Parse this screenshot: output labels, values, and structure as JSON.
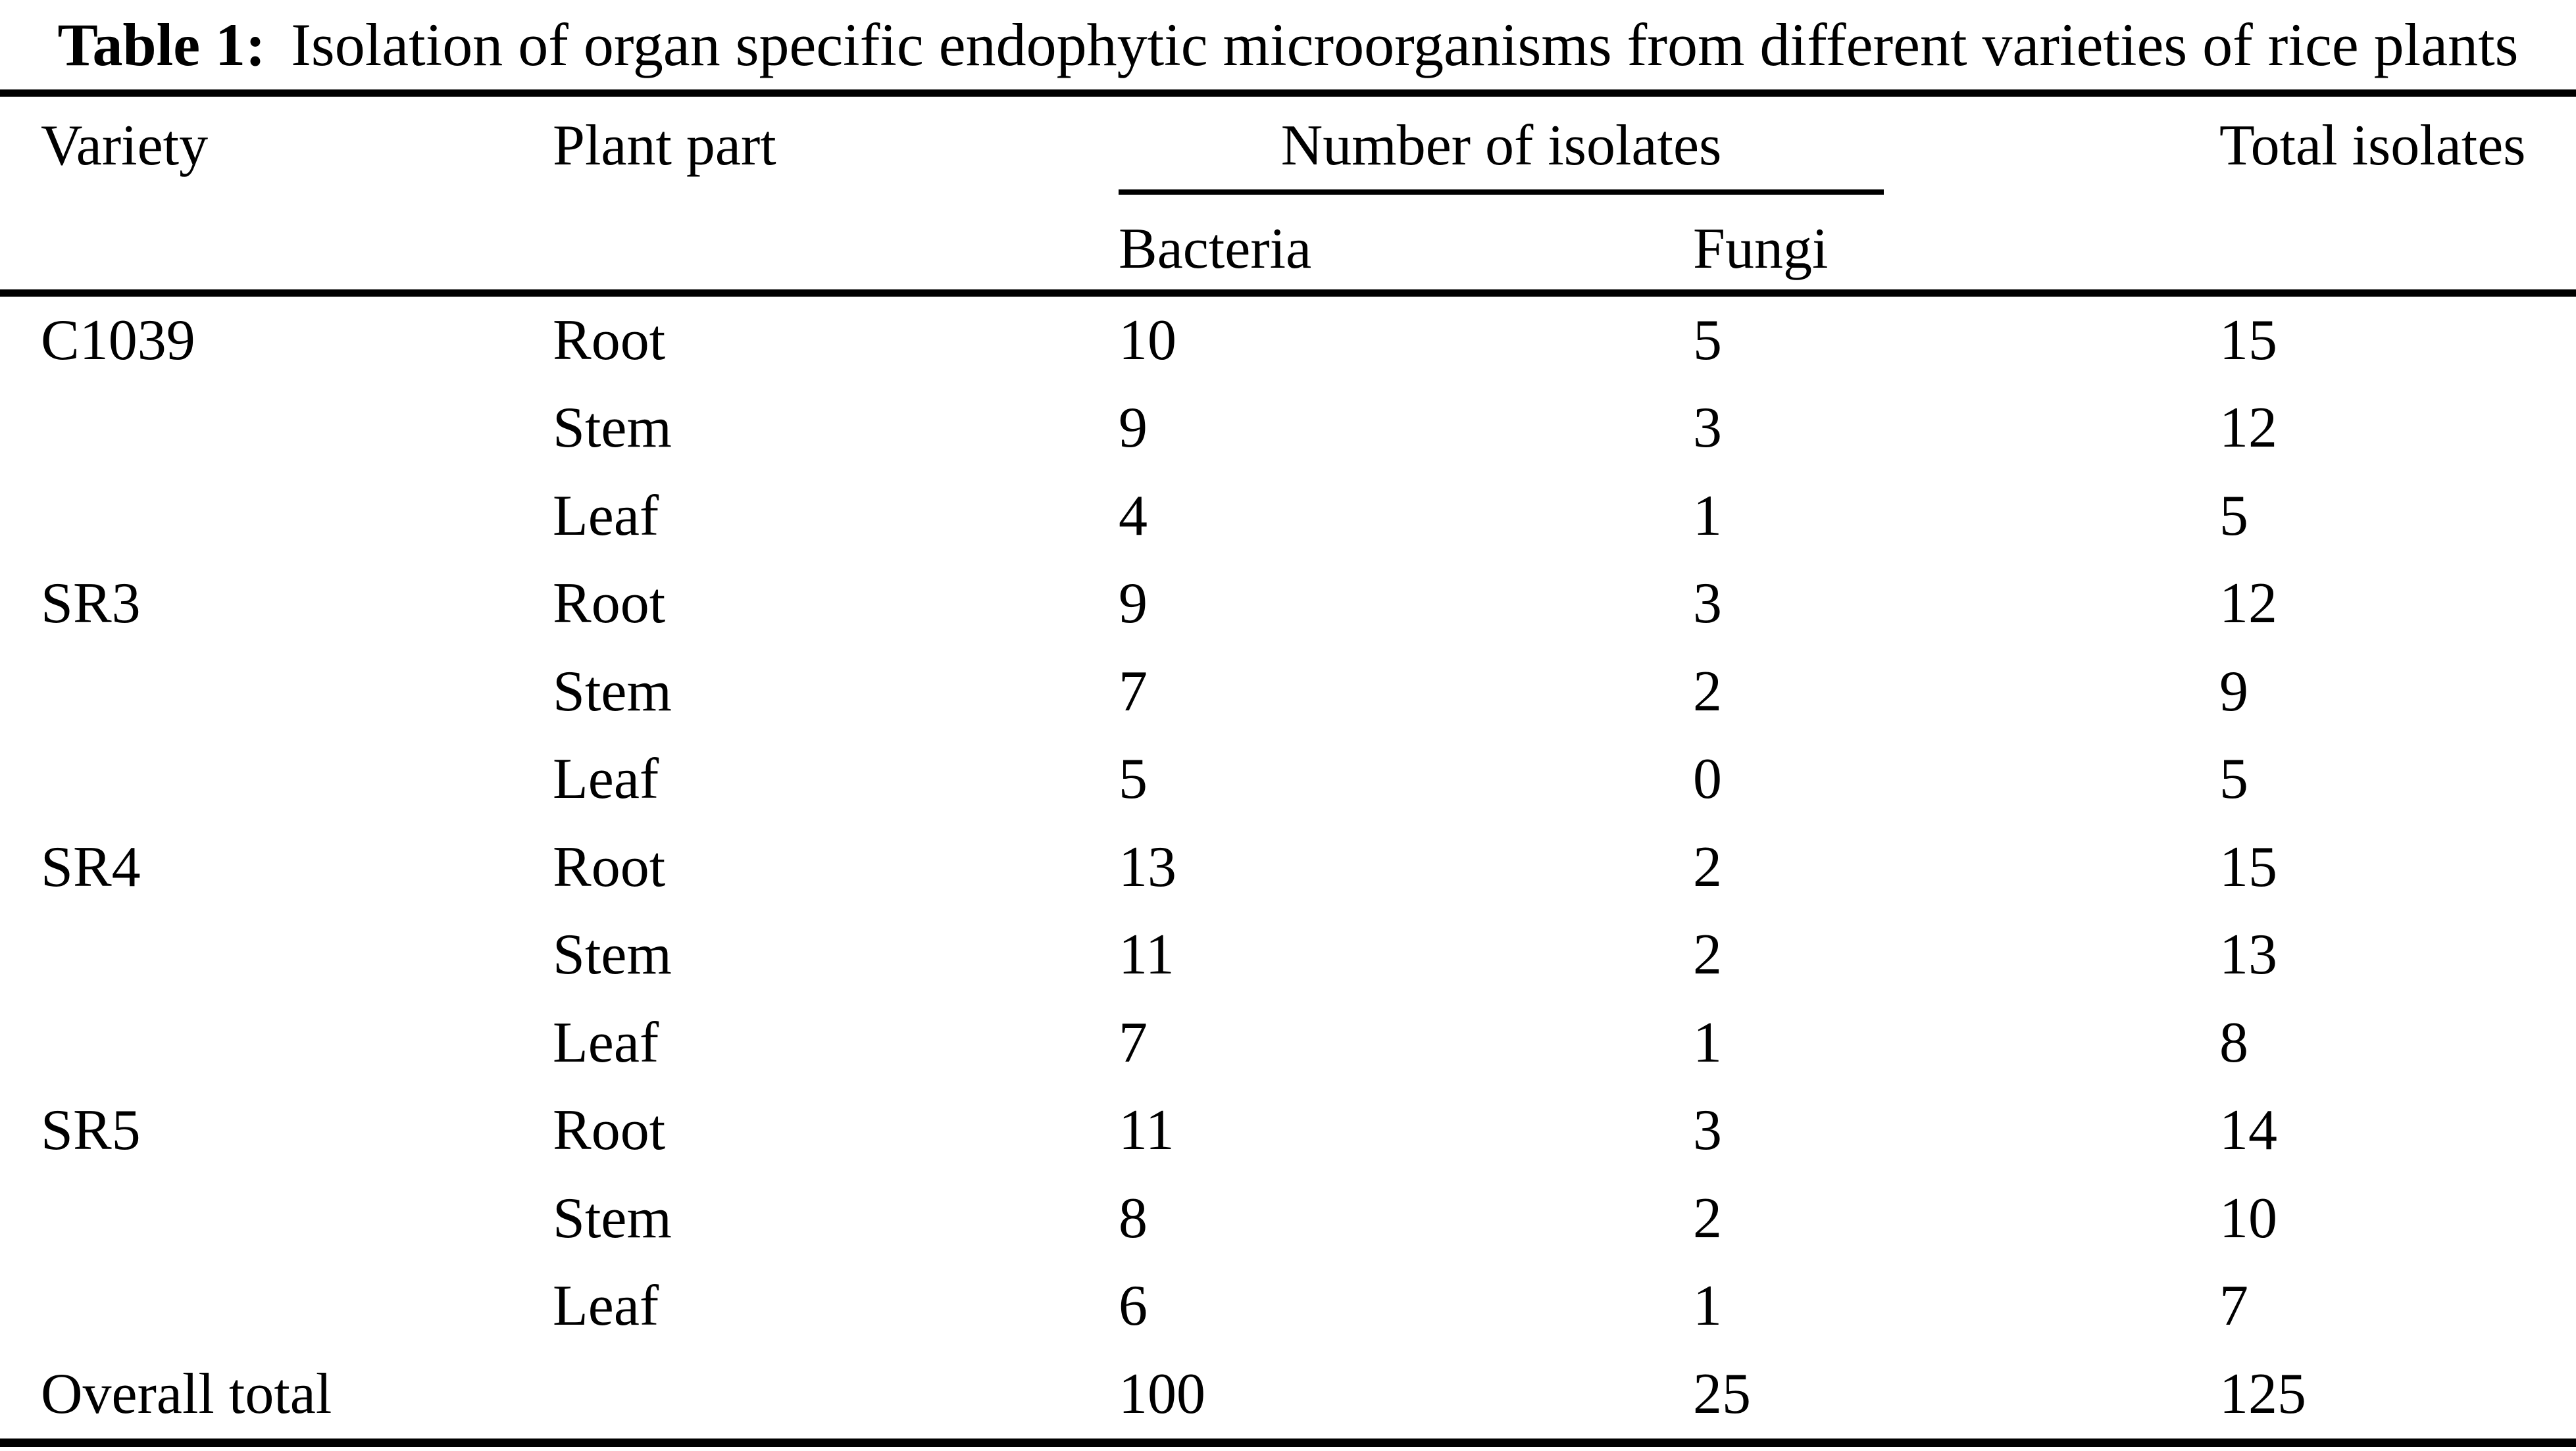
{
  "title": {
    "label": "Table 1:",
    "text": "Isolation of organ specific endophytic microorganisms from different varieties of rice plants"
  },
  "table": {
    "columns": {
      "variety": "Variety",
      "plant_part": "Plant part",
      "isolates_group": "Number of isolates",
      "total": "Total isolates"
    },
    "subcolumns": {
      "bacteria": "Bacteria",
      "fungi": "Fungi"
    },
    "rows": [
      {
        "variety": "C1039",
        "part": "Root",
        "bacteria": "10",
        "fungi": "5",
        "total": "15"
      },
      {
        "variety": "",
        "part": "Stem",
        "bacteria": "9",
        "fungi": "3",
        "total": "12"
      },
      {
        "variety": "",
        "part": "Leaf",
        "bacteria": "4",
        "fungi": "1",
        "total": "5"
      },
      {
        "variety": "SR3",
        "part": "Root",
        "bacteria": "9",
        "fungi": "3",
        "total": "12"
      },
      {
        "variety": "",
        "part": "Stem",
        "bacteria": "7",
        "fungi": "2",
        "total": "9"
      },
      {
        "variety": "",
        "part": "Leaf",
        "bacteria": "5",
        "fungi": "0",
        "total": "5"
      },
      {
        "variety": "SR4",
        "part": "Root",
        "bacteria": "13",
        "fungi": "2",
        "total": "15"
      },
      {
        "variety": "",
        "part": "Stem",
        "bacteria": "11",
        "fungi": "2",
        "total": "13"
      },
      {
        "variety": "",
        "part": "Leaf",
        "bacteria": "7",
        "fungi": "1",
        "total": "8"
      },
      {
        "variety": "SR5",
        "part": "Root",
        "bacteria": "11",
        "fungi": "3",
        "total": "14"
      },
      {
        "variety": "",
        "part": "Stem",
        "bacteria": "8",
        "fungi": "2",
        "total": "10"
      },
      {
        "variety": "",
        "part": "Leaf",
        "bacteria": "6",
        "fungi": "1",
        "total": "7"
      },
      {
        "variety": "Overall total",
        "part": "",
        "bacteria": "100",
        "fungi": "25",
        "total": "125"
      }
    ]
  },
  "colors": {
    "text": "#000000",
    "background": "#ffffff",
    "rule": "#000000"
  }
}
